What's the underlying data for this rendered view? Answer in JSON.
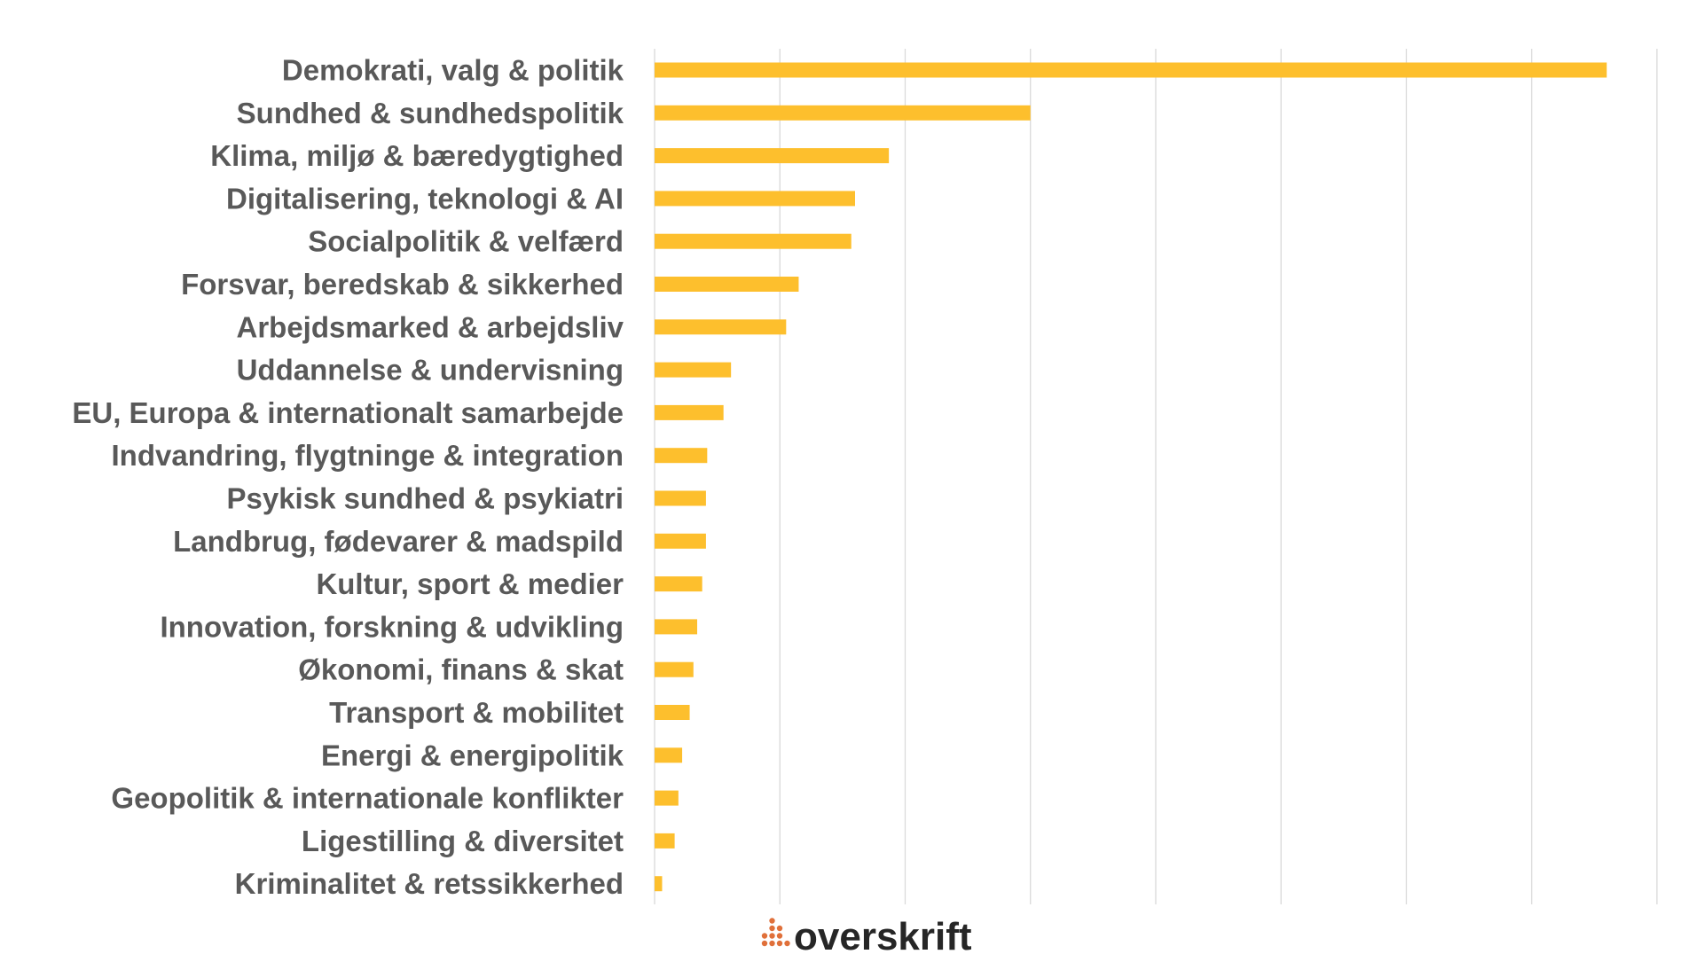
{
  "chart_data": {
    "type": "bar",
    "orientation": "horizontal",
    "title": "",
    "xlabel": "",
    "ylabel": "",
    "categories": [
      "Demokrati, valg & politik",
      "Sundhed & sundhedspolitik",
      "Klima, miljø & bæredygtighed",
      "Digitalisering, teknologi & AI",
      "Socialpolitik & velfærd",
      "Forsvar, beredskab & sikkerhed",
      "Arbejdsmarked & arbejdsliv",
      "Uddannelse & undervisning",
      "EU, Europa & internationalt samarbejde",
      "Indvandring, flygtninge & integration",
      "Psykisk sundhed & psykiatri",
      "Landbrug, fødevarer & madspild",
      "Kultur, sport & medier",
      "Innovation, forskning & udvikling",
      "Økonomi, finans & skat",
      "Transport & mobilitet",
      "Energi & energipolitik",
      "Geopolitik & internationale konflikter",
      "Ligestilling & diversitet",
      "Kriminalitet & retssikkerhed"
    ],
    "values": [
      7.6,
      3.0,
      1.87,
      1.6,
      1.57,
      1.15,
      1.05,
      0.61,
      0.55,
      0.42,
      0.41,
      0.41,
      0.38,
      0.34,
      0.31,
      0.28,
      0.22,
      0.19,
      0.16,
      0.06
    ],
    "xlim": [
      0,
      8
    ],
    "grid": true,
    "gridline_count": 8,
    "tick_labels_shown": false,
    "bar_color": "#FDBF2D",
    "label_color": "#595959",
    "grid_color": "#D9D9D9"
  },
  "brand": {
    "logo_text": "overskrift",
    "logo_text_color": "#262626",
    "logo_dots_color": "#E0703A"
  }
}
